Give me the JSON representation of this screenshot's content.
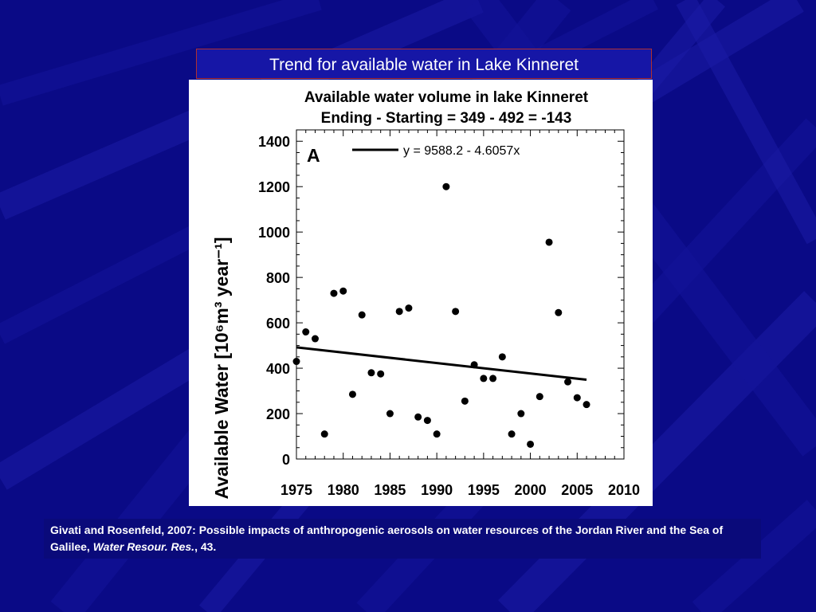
{
  "slide": {
    "title": "Trend for available water in Lake Kinneret",
    "citation_text": "Givati and Rosenfeld, 2007: Possible impacts of anthropogenic aerosols on water resources of the Jordan River and the Sea of Galilee,",
    "citation_journal": "Water Resour. Res.",
    "citation_volume": ", 43.",
    "background_color": "#0a0a86"
  },
  "chart_data": {
    "type": "scatter",
    "title": "Available water volume in lake Kinneret",
    "subtitle": "Ending - Starting = 349 - 492 = -143",
    "panel_label": "A",
    "ylabel": "Available Water [10⁶m³ year⁻¹]",
    "xlabel": "",
    "xlim": [
      1975,
      2010
    ],
    "ylim": [
      0,
      1450
    ],
    "xticks": [
      1975,
      1980,
      1985,
      1990,
      1995,
      2000,
      2005,
      2010
    ],
    "yticks": [
      0,
      200,
      400,
      600,
      800,
      1000,
      1200,
      1400
    ],
    "grid": false,
    "legend": "top-left",
    "trendline": {
      "label": "y = 9588.2 - 4.6057x",
      "intercept": 9588.2,
      "slope": -4.6057,
      "x_start": 1975,
      "x_end": 2006
    },
    "x": [
      1975,
      1976,
      1977,
      1978,
      1979,
      1980,
      1981,
      1982,
      1983,
      1984,
      1985,
      1986,
      1987,
      1988,
      1989,
      1990,
      1991,
      1992,
      1993,
      1994,
      1995,
      1996,
      1997,
      1998,
      1999,
      2000,
      2001,
      2002,
      2003,
      2004,
      2005,
      2006
    ],
    "y": [
      430,
      560,
      530,
      110,
      730,
      740,
      285,
      635,
      380,
      375,
      200,
      650,
      665,
      185,
      170,
      110,
      1200,
      650,
      255,
      415,
      355,
      355,
      450,
      110,
      200,
      65,
      275,
      955,
      645,
      340,
      270,
      240
    ],
    "colors": {
      "points": "#000000",
      "trendline": "#000000"
    }
  }
}
